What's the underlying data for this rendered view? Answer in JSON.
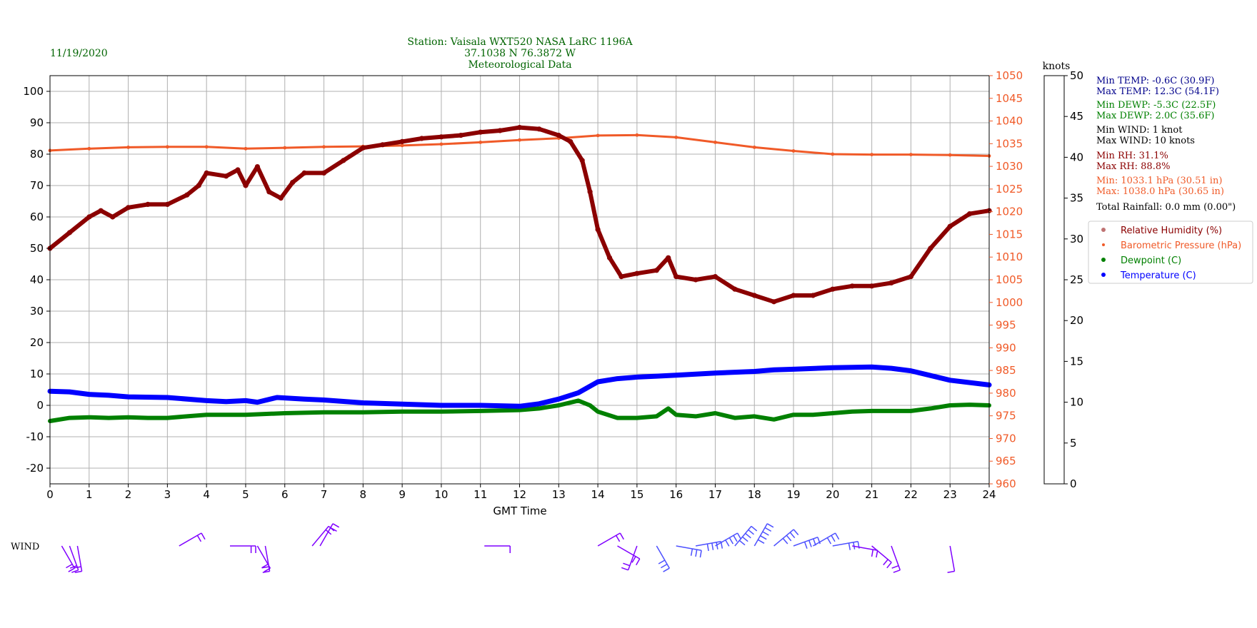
{
  "header": {
    "date": "11/19/2020",
    "station_line1": "Station:  Vaisala WXT520  NASA LaRC 1196A",
    "station_line2": "37.1038 N 76.3872 W",
    "station_line3": "Meteorological Data"
  },
  "colors": {
    "humidity": "#8b0000",
    "pressure": "#f05a28",
    "dewpoint": "#008000",
    "temperature": "#0000ff",
    "stats_temp": "#00008b",
    "stats_dewp": "#008000",
    "stats_wind": "#000000",
    "stats_rh": "#8b0000",
    "stats_press": "#f05a28",
    "stats_rain": "#000000",
    "header_text": "#006400"
  },
  "stats": {
    "min_temp": "Min TEMP: -0.6C (30.9F)",
    "max_temp": "Max TEMP: 12.3C (54.1F)",
    "min_dewp": "Min DEWP: -5.3C (22.5F)",
    "max_dewp": "Max DEWP: 2.0C (35.6F)",
    "min_wind": "Min WIND: 1 knot",
    "max_wind": "Max WIND: 10 knots",
    "min_rh": "Min RH: 31.1%",
    "max_rh": "Max RH: 88.8%",
    "min_press": "Min: 1033.1 hPa (30.51 in)",
    "max_press": "Max: 1038.0 hPa (30.65 in)",
    "rainfall": "Total Rainfall: 0.0 mm (0.00\")"
  },
  "legend": {
    "items": [
      {
        "label": "Relative Humidity (%)",
        "color": "#8b0000"
      },
      {
        "label": "Barometric Pressure (hPa)",
        "color": "#f05a28"
      },
      {
        "label": "Dewpoint (C)",
        "color": "#008000"
      },
      {
        "label": "Temperature (C)",
        "color": "#0000ff"
      }
    ]
  },
  "colorbar": {
    "title": "knots",
    "ticks": [
      "0",
      "5",
      "10",
      "15",
      "20",
      "25",
      "30",
      "35",
      "40",
      "45",
      "50"
    ],
    "bands": [
      "#7f00ff",
      "#4c50ff",
      "#1496f0",
      "#29d4dc",
      "#5cf0b4",
      "#95fb96",
      "#d4dc7f",
      "#ffa45c",
      "#ff5a2e",
      "#ff0000"
    ]
  },
  "wind_label": "WIND",
  "chart_data": {
    "type": "line",
    "xlabel": "GMT Time",
    "xlim": [
      0,
      24
    ],
    "x_ticks": [
      "0",
      "1",
      "2",
      "3",
      "4",
      "5",
      "6",
      "7",
      "8",
      "9",
      "10",
      "11",
      "12",
      "13",
      "14",
      "15",
      "16",
      "17",
      "18",
      "19",
      "20",
      "21",
      "22",
      "23",
      "24"
    ],
    "left_axis": {
      "ylim": [
        -25,
        105
      ],
      "ticks": [
        "-20",
        "-10",
        "0",
        "10",
        "20",
        "30",
        "40",
        "50",
        "60",
        "70",
        "80",
        "90",
        "100"
      ]
    },
    "right_axis": {
      "ylim": [
        960,
        1050
      ],
      "ticks": [
        "960",
        "965",
        "970",
        "975",
        "980",
        "985",
        "990",
        "995",
        "1000",
        "1005",
        "1010",
        "1015",
        "1020",
        "1025",
        "1030",
        "1035",
        "1040",
        "1045",
        "1050"
      ]
    },
    "grid": true,
    "series": [
      {
        "name": "Relative Humidity (%)",
        "axis": "left",
        "x": [
          0,
          0.5,
          1,
          1.3,
          1.6,
          2,
          2.5,
          3,
          3.5,
          3.8,
          4,
          4.5,
          4.8,
          5,
          5.3,
          5.6,
          5.9,
          6.2,
          6.5,
          7,
          7.5,
          8,
          8.5,
          9,
          9.5,
          10,
          10.5,
          11,
          11.5,
          12,
          12.5,
          13,
          13.3,
          13.6,
          13.8,
          14,
          14.3,
          14.6,
          15,
          15.5,
          15.8,
          16,
          16.5,
          17,
          17.5,
          18,
          18.5,
          19,
          19.5,
          20,
          20.5,
          21,
          21.5,
          22,
          22.5,
          23,
          23.5,
          24
        ],
        "y": [
          50,
          55,
          60,
          62,
          60,
          63,
          64,
          64,
          67,
          70,
          74,
          73,
          75,
          70,
          76,
          68,
          66,
          71,
          74,
          74,
          78,
          82,
          83,
          84,
          85,
          85.5,
          86,
          87,
          87.5,
          88.5,
          88,
          86,
          84,
          78,
          68,
          56,
          47,
          41,
          42,
          43,
          47,
          41,
          40,
          41,
          37,
          35,
          33,
          35,
          35,
          37,
          38,
          38,
          39,
          41,
          50,
          57,
          61,
          62
        ]
      },
      {
        "name": "Barometric Pressure (hPa)",
        "axis": "right",
        "x": [
          0,
          1,
          2,
          3,
          4,
          5,
          6,
          7,
          8,
          9,
          10,
          11,
          12,
          13,
          14,
          15,
          16,
          17,
          18,
          19,
          20,
          21,
          22,
          23,
          24
        ],
        "y": [
          1033.5,
          1033.9,
          1034.2,
          1034.3,
          1034.3,
          1033.9,
          1034.1,
          1034.3,
          1034.4,
          1034.6,
          1034.9,
          1035.3,
          1035.8,
          1036.2,
          1036.8,
          1036.9,
          1036.4,
          1035.3,
          1034.2,
          1033.4,
          1032.7,
          1032.6,
          1032.6,
          1032.5,
          1032.3
        ]
      },
      {
        "name": "Dewpoint (C)",
        "axis": "left",
        "x": [
          0,
          0.5,
          1,
          1.5,
          2,
          2.5,
          3,
          3.5,
          4,
          4.5,
          5,
          6,
          7,
          8,
          9,
          10,
          11,
          12,
          12.5,
          13,
          13.5,
          13.8,
          14,
          14.5,
          15,
          15.5,
          15.8,
          16,
          16.5,
          17,
          17.5,
          18,
          18.5,
          19,
          19.5,
          20,
          20.5,
          21,
          21.5,
          22,
          22.5,
          23,
          23.5,
          24
        ],
        "y": [
          -5,
          -4,
          -3.8,
          -4,
          -3.8,
          -4,
          -4,
          -3.5,
          -3,
          -3,
          -3,
          -2.5,
          -2.2,
          -2.2,
          -2,
          -2,
          -1.8,
          -1.5,
          -1,
          0,
          1.5,
          0,
          -2,
          -4,
          -4,
          -3.5,
          -1,
          -3,
          -3.5,
          -2.5,
          -4,
          -3.5,
          -4.5,
          -3,
          -3,
          -2.5,
          -2,
          -1.8,
          -1.8,
          -1.8,
          -1,
          0,
          0.2,
          0
        ]
      },
      {
        "name": "Temperature (C)",
        "axis": "left",
        "x": [
          0,
          0.5,
          1,
          1.5,
          2,
          3,
          4,
          4.5,
          5,
          5.3,
          5.8,
          6.5,
          7,
          8,
          9,
          10,
          11,
          12,
          12.5,
          13,
          13.5,
          14,
          14.5,
          15,
          15.5,
          16,
          17,
          18,
          18.5,
          19,
          20,
          21,
          21.5,
          22,
          22.5,
          23,
          24
        ],
        "y": [
          4.5,
          4.3,
          3.5,
          3.2,
          2.7,
          2.5,
          1.5,
          1.2,
          1.5,
          1,
          2.5,
          2,
          1.7,
          0.8,
          0.4,
          0,
          0,
          -0.3,
          0.5,
          2,
          4,
          7.5,
          8.5,
          9,
          9.3,
          9.6,
          10.3,
          10.8,
          11.3,
          11.5,
          12,
          12.2,
          11.8,
          11,
          9.5,
          8,
          6.5
        ]
      }
    ],
    "wind_points": [
      {
        "x": 0.3,
        "speed": 3,
        "dir": 150
      },
      {
        "x": 0.5,
        "speed": 4,
        "dir": 160
      },
      {
        "x": 0.7,
        "speed": 3,
        "dir": 170
      },
      {
        "x": 3.3,
        "speed": 3,
        "dir": 60
      },
      {
        "x": 4.6,
        "speed": 3,
        "dir": 90
      },
      {
        "x": 5.3,
        "speed": 4,
        "dir": 150
      },
      {
        "x": 5.5,
        "speed": 4,
        "dir": 170
      },
      {
        "x": 6.7,
        "speed": 4,
        "dir": 40
      },
      {
        "x": 6.9,
        "speed": 3,
        "dir": 30
      },
      {
        "x": 11.1,
        "speed": 2,
        "dir": 90
      },
      {
        "x": 14.0,
        "speed": 3,
        "dir": 60
      },
      {
        "x": 14.5,
        "speed": 4,
        "dir": 120
      },
      {
        "x": 15.0,
        "speed": 4,
        "dir": 200
      },
      {
        "x": 15.5,
        "speed": 5,
        "dir": 150
      },
      {
        "x": 16.0,
        "speed": 6,
        "dir": 100
      },
      {
        "x": 16.5,
        "speed": 7,
        "dir": 80
      },
      {
        "x": 17.0,
        "speed": 8,
        "dir": 60
      },
      {
        "x": 17.5,
        "speed": 9,
        "dir": 40
      },
      {
        "x": 18.0,
        "speed": 9,
        "dir": 30
      },
      {
        "x": 18.5,
        "speed": 8,
        "dir": 50
      },
      {
        "x": 19.0,
        "speed": 7,
        "dir": 70
      },
      {
        "x": 19.5,
        "speed": 6,
        "dir": 60
      },
      {
        "x": 20.0,
        "speed": 5,
        "dir": 80
      },
      {
        "x": 20.5,
        "speed": 4,
        "dir": 100
      },
      {
        "x": 21.0,
        "speed": 4,
        "dir": 130
      },
      {
        "x": 21.5,
        "speed": 3,
        "dir": 160
      },
      {
        "x": 23.0,
        "speed": 2,
        "dir": 170
      }
    ]
  }
}
